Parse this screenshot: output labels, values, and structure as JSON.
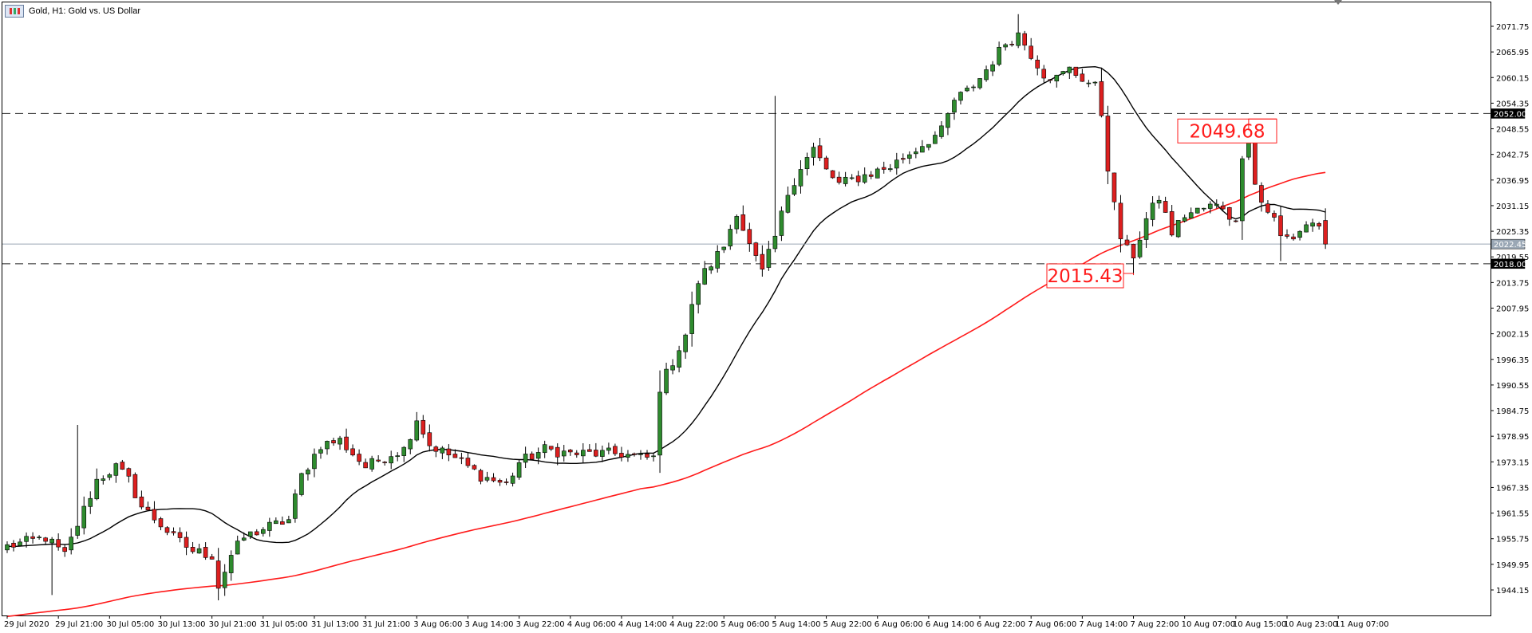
{
  "window": {
    "title": "Gold, H1:  Gold vs. US Dollar"
  },
  "colors": {
    "bull_candle": "#2e8b2e",
    "bear_candle": "#dd1f1f",
    "ma_fast": "#000000",
    "ma_slow": "#ff1a1a",
    "current_price_line": "#9aa7b5",
    "annotation": "#ff1a1a"
  },
  "chart_data": {
    "type": "candlestick",
    "symbol": "Gold",
    "timeframe": "H1",
    "ylim": [
      1938.0,
      2078.0
    ],
    "y_ticks": [
      "2071.75",
      "2065.95",
      "2060.15",
      "2054.35",
      "2048.55",
      "2042.75",
      "2036.95",
      "2031.15",
      "2025.35",
      "2019.55",
      "2013.75",
      "2007.95",
      "2002.15",
      "1996.35",
      "1990.55",
      "1984.75",
      "1978.95",
      "1973.15",
      "1967.35",
      "1961.55",
      "1955.75",
      "1949.95",
      "1944.15"
    ],
    "x_ticks": [
      {
        "i": 0,
        "label": "29 Jul 2020"
      },
      {
        "i": 8,
        "label": "29 Jul 21:00"
      },
      {
        "i": 16,
        "label": "30 Jul 05:00"
      },
      {
        "i": 24,
        "label": "30 Jul 13:00"
      },
      {
        "i": 32,
        "label": "30 Jul 21:00"
      },
      {
        "i": 40,
        "label": "31 Jul 05:00"
      },
      {
        "i": 48,
        "label": "31 Jul 13:00"
      },
      {
        "i": 56,
        "label": "31 Jul 21:00"
      },
      {
        "i": 64,
        "label": "3 Aug 06:00"
      },
      {
        "i": 72,
        "label": "3 Aug 14:00"
      },
      {
        "i": 80,
        "label": "3 Aug 22:00"
      },
      {
        "i": 88,
        "label": "4 Aug 06:00"
      },
      {
        "i": 96,
        "label": "4 Aug 14:00"
      },
      {
        "i": 104,
        "label": "4 Aug 22:00"
      },
      {
        "i": 112,
        "label": "5 Aug 06:00"
      },
      {
        "i": 120,
        "label": "5 Aug 14:00"
      },
      {
        "i": 128,
        "label": "5 Aug 22:00"
      },
      {
        "i": 136,
        "label": "6 Aug 06:00"
      },
      {
        "i": 144,
        "label": "6 Aug 14:00"
      },
      {
        "i": 152,
        "label": "6 Aug 22:00"
      },
      {
        "i": 160,
        "label": "7 Aug 06:00"
      },
      {
        "i": 168,
        "label": "7 Aug 14:00"
      },
      {
        "i": 176,
        "label": "7 Aug 22:00"
      },
      {
        "i": 184,
        "label": "10 Aug 07:00"
      },
      {
        "i": 192,
        "label": "10 Aug 15:00"
      },
      {
        "i": 200,
        "label": "10 Aug 23:00"
      },
      {
        "i": 208,
        "label": "11 Aug 07:00"
      }
    ],
    "anchors": [
      [
        0,
        1954
      ],
      [
        6,
        1956
      ],
      [
        9,
        1952
      ],
      [
        11,
        1959
      ],
      [
        14,
        1969
      ],
      [
        17,
        1972
      ],
      [
        19,
        1969
      ],
      [
        21,
        1963
      ],
      [
        24,
        1959
      ],
      [
        26,
        1956
      ],
      [
        29,
        1953
      ],
      [
        32,
        1952
      ],
      [
        33,
        1945
      ],
      [
        35,
        1952
      ],
      [
        37,
        1956
      ],
      [
        40,
        1958
      ],
      [
        44,
        1960
      ],
      [
        46,
        1970
      ],
      [
        49,
        1977
      ],
      [
        52,
        1978
      ],
      [
        56,
        1972
      ],
      [
        60,
        1975
      ],
      [
        62,
        1976
      ],
      [
        64,
        1983
      ],
      [
        66,
        1977
      ],
      [
        70,
        1974
      ],
      [
        74,
        1970
      ],
      [
        78,
        1968
      ],
      [
        80,
        1973
      ],
      [
        84,
        1976
      ],
      [
        88,
        1975
      ],
      [
        92,
        1975
      ],
      [
        96,
        1975
      ],
      [
        99,
        1974
      ],
      [
        101,
        1974
      ],
      [
        102,
        1990
      ],
      [
        104,
        1996
      ],
      [
        106,
        2002
      ],
      [
        108,
        2014
      ],
      [
        110,
        2018
      ],
      [
        112,
        2022
      ],
      [
        114,
        2030
      ],
      [
        116,
        2022
      ],
      [
        118,
        2016
      ],
      [
        120,
        2024
      ],
      [
        122,
        2034
      ],
      [
        124,
        2040
      ],
      [
        126,
        2044
      ],
      [
        128,
        2039
      ],
      [
        130,
        2036
      ],
      [
        134,
        2038
      ],
      [
        138,
        2040
      ],
      [
        140,
        2042
      ],
      [
        143,
        2045
      ],
      [
        146,
        2048
      ],
      [
        148,
        2055
      ],
      [
        150,
        2057
      ],
      [
        152,
        2060
      ],
      [
        156,
        2068
      ],
      [
        158,
        2070
      ],
      [
        162,
        2061
      ],
      [
        164,
        2060
      ],
      [
        166,
        2062
      ],
      [
        168,
        2060
      ],
      [
        170,
        2058
      ],
      [
        171,
        2052
      ],
      [
        172,
        2040
      ],
      [
        173,
        2031
      ],
      [
        174,
        2024
      ],
      [
        175,
        2021
      ],
      [
        176,
        2020
      ],
      [
        178,
        2028
      ],
      [
        180,
        2033
      ],
      [
        182,
        2025
      ],
      [
        184,
        2029
      ],
      [
        188,
        2031
      ],
      [
        190,
        2031
      ],
      [
        192,
        2027
      ],
      [
        193,
        2043
      ],
      [
        194,
        2047
      ],
      [
        195,
        2036
      ],
      [
        196,
        2032
      ],
      [
        197,
        2030
      ],
      [
        198,
        2028
      ],
      [
        199,
        2024
      ],
      [
        201,
        2024
      ],
      [
        203,
        2027
      ],
      [
        205,
        2027
      ],
      [
        206,
        2023
      ]
    ],
    "horizontal_lines": [
      {
        "label": "2052.00",
        "value": 2052.0,
        "style": "dashed"
      },
      {
        "label": "2018.00",
        "value": 2018.0,
        "style": "dashed"
      }
    ],
    "current_price": {
      "label": "2022.45",
      "value": 2022.45
    },
    "annotations": [
      {
        "text": "2049.68",
        "value": 2049.68,
        "bar": 194
      },
      {
        "text": "2015.43",
        "value": 2015.43,
        "bar": 176
      }
    ],
    "moving_averages": [
      {
        "role": "fast",
        "period": 20
      },
      {
        "role": "slow",
        "period": 100
      }
    ]
  }
}
